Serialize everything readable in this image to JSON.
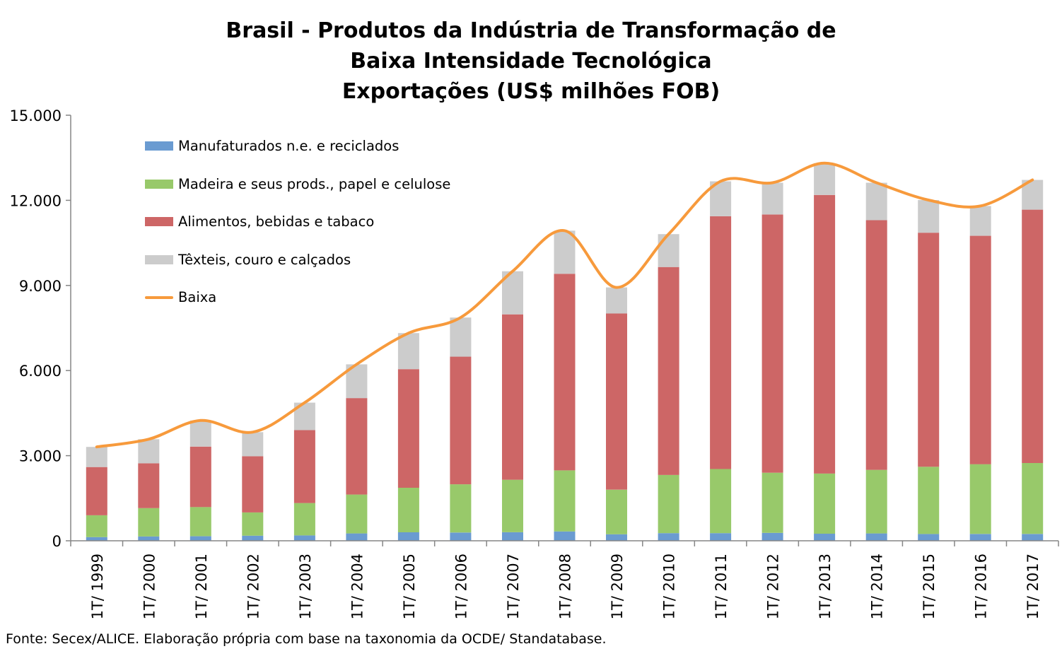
{
  "title_lines": [
    "Brasil - Produtos da Indústria de Transformação de",
    "Baixa Intensidade Tecnológica",
    "Exportações (US$ milhões FOB)"
  ],
  "source": "Fonte: Secex/ALICE. Elaboração própria com base na taxonomia da OCDE/ Standatabase.",
  "chart_data": {
    "type": "bar",
    "stacked": true,
    "title": "Brasil - Produtos da Indústria de Transformação de Baixa Intensidade Tecnológica Exportações (US$ milhões FOB)",
    "xlabel": "",
    "ylabel": "",
    "ylim": [
      0,
      15000
    ],
    "yticks": [
      0,
      3000,
      6000,
      9000,
      12000,
      15000
    ],
    "ytick_labels": [
      "0",
      "3.000",
      "6.000",
      "9.000",
      "12.000",
      "15.000"
    ],
    "grid": false,
    "legend_position": "top-left",
    "categories": [
      "1T/ 1999",
      "1T/ 2000",
      "1T/ 2001",
      "1T/ 2002",
      "1T/ 2003",
      "1T/ 2004",
      "1T/ 2005",
      "1T/ 2006",
      "1T/ 2007",
      "1T/ 2008",
      "1T/ 2009",
      "1T/ 2010",
      "1T/ 2011",
      "1T/ 2012",
      "1T/ 2013",
      "1T/ 2014",
      "1T/ 2015",
      "1T/ 2016",
      "1T/ 2017"
    ],
    "series": [
      {
        "name": "Manufaturados n.e. e reciclados",
        "kind": "bar",
        "color": "#6a9bd1",
        "values": [
          130,
          150,
          160,
          180,
          190,
          260,
          300,
          290,
          300,
          330,
          230,
          270,
          270,
          280,
          250,
          260,
          240,
          240,
          240
        ]
      },
      {
        "name": "Madeira e seus prods., papel e celulose",
        "kind": "bar",
        "color": "#98c96a",
        "values": [
          770,
          1000,
          1030,
          820,
          1140,
          1370,
          1570,
          1700,
          1850,
          2150,
          1570,
          2050,
          2260,
          2120,
          2120,
          2240,
          2370,
          2460,
          2500
        ]
      },
      {
        "name": "Alimentos, bebidas e tabaco",
        "kind": "bar",
        "color": "#cd6666",
        "values": [
          1700,
          1580,
          2130,
          1980,
          2570,
          3400,
          4180,
          4500,
          5830,
          6930,
          6210,
          7330,
          8910,
          9100,
          9820,
          8800,
          8250,
          8050,
          8930
        ]
      },
      {
        "name": "Têxteis, couro e calçados",
        "kind": "bar",
        "color": "#cccccc",
        "values": [
          710,
          850,
          920,
          850,
          970,
          1190,
          1270,
          1380,
          1520,
          1520,
          920,
          1160,
          1230,
          1120,
          1120,
          1320,
          1150,
          1050,
          1050
        ]
      },
      {
        "name": "Baixa",
        "kind": "line",
        "color": "#f79a3c",
        "values": [
          3310,
          3580,
          4240,
          3830,
          4870,
          6220,
          7320,
          7870,
          9500,
          10930,
          8930,
          10810,
          12670,
          12620,
          13310,
          12620,
          12010,
          11800,
          12720
        ]
      }
    ]
  }
}
